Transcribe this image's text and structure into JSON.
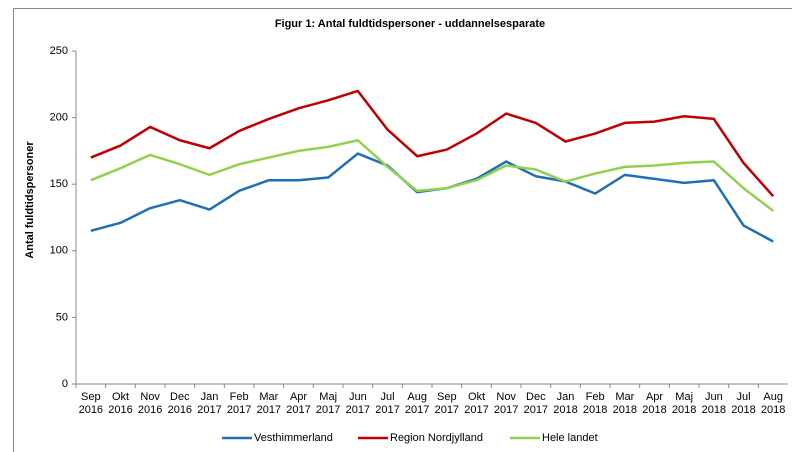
{
  "chart_data": {
    "type": "line",
    "title": "Figur 1: Antal fuldtidspersoner  - uddannelsesparate",
    "y_label": "Antal fuldtidspersoner",
    "categories": [
      "Sep 2016",
      "Okt 2016",
      "Nov 2016",
      "Dec 2016",
      "Jan 2017",
      "Feb 2017",
      "Mar 2017",
      "Apr 2017",
      "Maj 2017",
      "Jun 2017",
      "Jul 2017",
      "Aug 2017",
      "Sep 2017",
      "Okt 2017",
      "Nov 2017",
      "Dec 2017",
      "Jan 2018",
      "Feb 2018",
      "Mar 2018",
      "Apr 2018",
      "Maj 2018",
      "Jun 2018",
      "Jul 2018",
      "Aug 2018"
    ],
    "series": [
      {
        "name": "Vesthimmerland",
        "color": "#1f6fb4",
        "values": [
          115,
          121,
          132,
          138,
          131,
          145,
          153,
          153,
          155,
          173,
          164,
          144,
          147,
          154,
          167,
          156,
          152,
          143,
          157,
          154,
          151,
          153,
          119,
          107
        ]
      },
      {
        "name": "Region Nordjylland",
        "color": "#c00000",
        "values": [
          170,
          179,
          193,
          183,
          177,
          190,
          199,
          207,
          213,
          220,
          191,
          171,
          176,
          188,
          203,
          196,
          182,
          188,
          196,
          197,
          201,
          199,
          166,
          141
        ]
      },
      {
        "name": "Hele landet",
        "color": "#92d050",
        "values": [
          153,
          162,
          172,
          165,
          157,
          165,
          170,
          175,
          178,
          183,
          163,
          145,
          147,
          153,
          164,
          161,
          152,
          158,
          163,
          164,
          166,
          167,
          147,
          130
        ]
      }
    ],
    "ylim": [
      0,
      250
    ],
    "yticks": [
      0,
      50,
      100,
      150,
      200,
      250
    ],
    "grid": false,
    "legend": "bottom"
  }
}
